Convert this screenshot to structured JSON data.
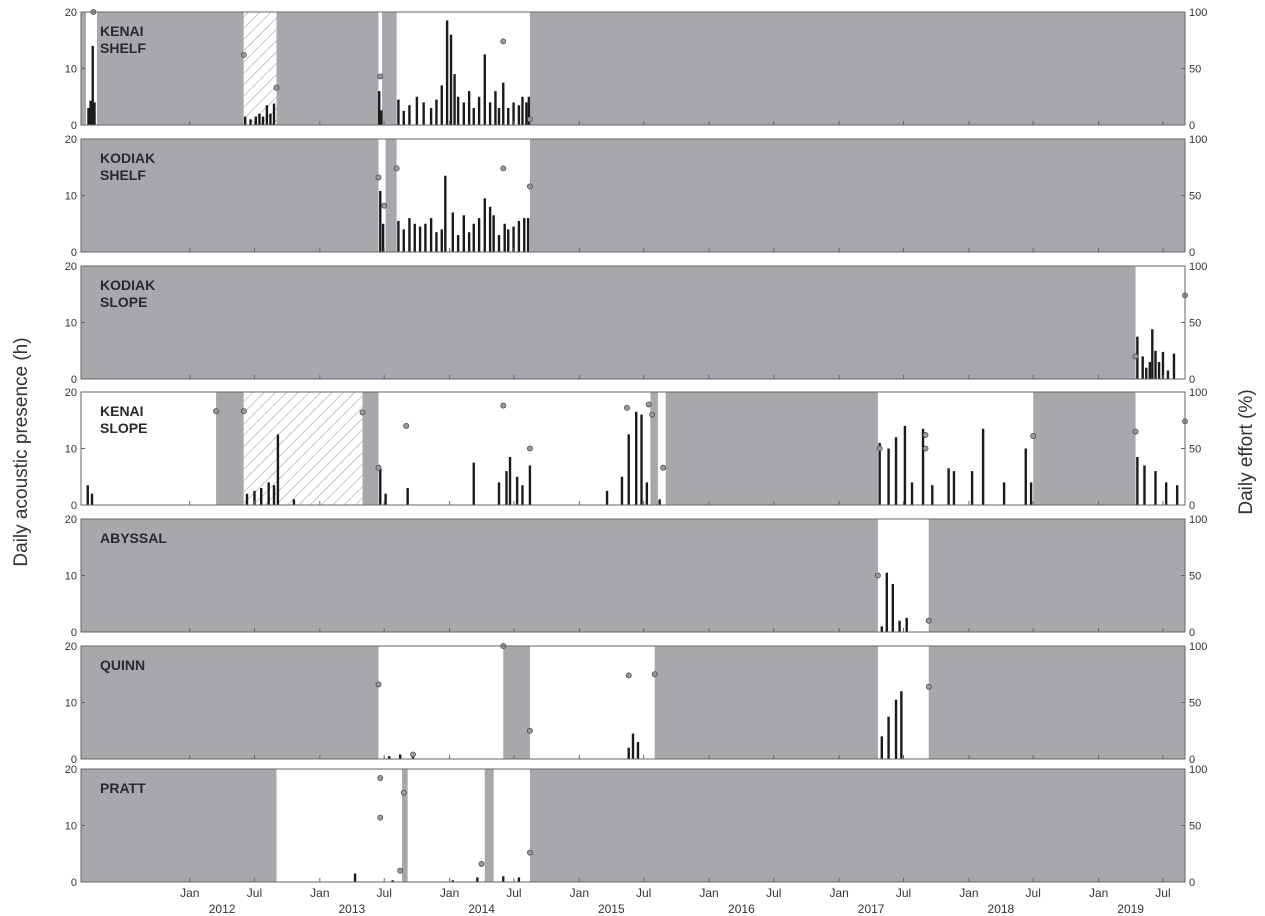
{
  "colors": {
    "no_effort": "#a7a8ab",
    "bar": "#1a1a1a",
    "effort_point_fill": "#9a9a9a",
    "frame": "#666666",
    "hatch": "#777777"
  },
  "chart_data": {
    "type": "bar",
    "ylabel_left": "Daily acoustic presence (h)",
    "ylabel_right": "Daily effort (%)",
    "ylim_left": [
      0,
      20
    ],
    "ylim_right": [
      0,
      100
    ],
    "yticks_left": [
      "0",
      "10",
      "20"
    ],
    "yticks_right": [
      "0",
      "50",
      "100"
    ],
    "xlim": [
      "2011-03-01",
      "2019-09-01"
    ],
    "x_month_ticks": [
      {
        "date": "2012-01-01",
        "label": "Jan"
      },
      {
        "date": "2012-07-01",
        "label": "Jul"
      },
      {
        "date": "2013-01-01",
        "label": "Jan"
      },
      {
        "date": "2013-07-01",
        "label": "Jul"
      },
      {
        "date": "2014-01-01",
        "label": "Jan"
      },
      {
        "date": "2014-07-01",
        "label": "Jul"
      },
      {
        "date": "2015-01-01",
        "label": "Jan"
      },
      {
        "date": "2015-07-01",
        "label": "Jul"
      },
      {
        "date": "2016-01-01",
        "label": "Jan"
      },
      {
        "date": "2016-07-01",
        "label": "Jul"
      },
      {
        "date": "2017-01-01",
        "label": "Jan"
      },
      {
        "date": "2017-07-01",
        "label": "Jul"
      },
      {
        "date": "2018-01-01",
        "label": "Jan"
      },
      {
        "date": "2018-07-01",
        "label": "Jul"
      },
      {
        "date": "2019-01-01",
        "label": "Jan"
      },
      {
        "date": "2019-07-01",
        "label": "Jul"
      }
    ],
    "x_year_labels": [
      {
        "date": "2012-04-01",
        "label": "2012"
      },
      {
        "date": "2013-04-01",
        "label": "2013"
      },
      {
        "date": "2014-04-01",
        "label": "2014"
      },
      {
        "date": "2015-04-01",
        "label": "2015"
      },
      {
        "date": "2016-04-01",
        "label": "2016"
      },
      {
        "date": "2017-04-01",
        "label": "2017"
      },
      {
        "date": "2018-04-01",
        "label": "2018"
      },
      {
        "date": "2019-04-01",
        "label": "2019"
      }
    ],
    "panels": [
      {
        "name": "KENAI\nSHELF",
        "recorded": [
          [
            "2011-03-15",
            "2011-04-15"
          ],
          [
            "2012-06-01",
            "2012-09-01"
          ],
          [
            "2013-06-15",
            "2013-06-25"
          ],
          [
            "2013-08-05",
            "2014-08-15"
          ]
        ],
        "hatched": [
          [
            "2012-06-01",
            "2012-09-01"
          ]
        ],
        "bars": [
          [
            "2011-03-22",
            3
          ],
          [
            "2011-03-28",
            4.3
          ],
          [
            "2011-04-03",
            14
          ],
          [
            "2011-04-08",
            4
          ],
          [
            "2012-06-05",
            1.5
          ],
          [
            "2012-06-20",
            1
          ],
          [
            "2012-07-05",
            1.5
          ],
          [
            "2012-07-15",
            2
          ],
          [
            "2012-07-25",
            1.5
          ],
          [
            "2012-08-05",
            3.5
          ],
          [
            "2012-08-15",
            2
          ],
          [
            "2012-08-25",
            3.8
          ],
          [
            "2013-06-17",
            6
          ],
          [
            "2013-06-23",
            2.6
          ],
          [
            "2013-08-10",
            4.5
          ],
          [
            "2013-08-25",
            2.5
          ],
          [
            "2013-09-10",
            3.5
          ],
          [
            "2013-10-01",
            5
          ],
          [
            "2013-10-20",
            4
          ],
          [
            "2013-11-10",
            3
          ],
          [
            "2013-11-25",
            4.5
          ],
          [
            "2013-12-10",
            7
          ],
          [
            "2013-12-25",
            18.5
          ],
          [
            "2014-01-05",
            16
          ],
          [
            "2014-01-15",
            9
          ],
          [
            "2014-01-25",
            5
          ],
          [
            "2014-02-10",
            4
          ],
          [
            "2014-02-25",
            6
          ],
          [
            "2014-03-10",
            3
          ],
          [
            "2014-03-25",
            5
          ],
          [
            "2014-04-10",
            12.5
          ],
          [
            "2014-04-25",
            4
          ],
          [
            "2014-05-10",
            6
          ],
          [
            "2014-05-20",
            3
          ],
          [
            "2014-06-01",
            7.5
          ],
          [
            "2014-06-15",
            3
          ],
          [
            "2014-06-30",
            4
          ],
          [
            "2014-07-15",
            3.5
          ],
          [
            "2014-07-25",
            5
          ],
          [
            "2014-08-05",
            4
          ],
          [
            "2014-08-12",
            5
          ]
        ],
        "effort": [
          [
            "2011-04-05",
            100
          ],
          [
            "2012-06-01",
            62
          ],
          [
            "2012-09-01",
            33
          ],
          [
            "2013-06-20",
            43
          ],
          [
            "2014-06-01",
            74
          ],
          [
            "2014-08-15",
            5
          ]
        ]
      },
      {
        "name": "KODIAK\nSHELF",
        "recorded": [
          [
            "2013-06-15",
            "2013-07-05"
          ],
          [
            "2013-08-05",
            "2014-08-15"
          ]
        ],
        "hatched": [],
        "bars": [
          [
            "2013-06-20",
            10.8
          ],
          [
            "2013-06-28",
            5
          ],
          [
            "2013-08-10",
            5.5
          ],
          [
            "2013-08-25",
            4
          ],
          [
            "2013-09-10",
            6
          ],
          [
            "2013-09-25",
            5
          ],
          [
            "2013-10-10",
            4.5
          ],
          [
            "2013-10-25",
            5
          ],
          [
            "2013-11-10",
            6
          ],
          [
            "2013-11-25",
            3.5
          ],
          [
            "2013-12-10",
            4
          ],
          [
            "2013-12-20",
            13.5
          ],
          [
            "2014-01-10",
            7
          ],
          [
            "2014-01-25",
            3
          ],
          [
            "2014-02-10",
            6.5
          ],
          [
            "2014-02-25",
            3.5
          ],
          [
            "2014-03-10",
            5
          ],
          [
            "2014-03-25",
            6
          ],
          [
            "2014-04-10",
            9.5
          ],
          [
            "2014-04-25",
            8
          ],
          [
            "2014-05-05",
            6.5
          ],
          [
            "2014-05-20",
            3
          ],
          [
            "2014-06-05",
            5
          ],
          [
            "2014-06-15",
            4
          ],
          [
            "2014-06-30",
            4.5
          ],
          [
            "2014-07-15",
            5.5
          ],
          [
            "2014-07-30",
            6
          ],
          [
            "2014-08-10",
            6
          ]
        ],
        "effort": [
          [
            "2013-06-15",
            66
          ],
          [
            "2013-07-01",
            41
          ],
          [
            "2013-08-05",
            74
          ],
          [
            "2014-06-01",
            74
          ],
          [
            "2014-08-15",
            58
          ]
        ]
      },
      {
        "name": "KODIAK\nSLOPE",
        "recorded": [
          [
            "2019-04-15",
            "2019-09-01"
          ]
        ],
        "hatched": [],
        "bars": [
          [
            "2019-04-20",
            7.5
          ],
          [
            "2019-05-05",
            4
          ],
          [
            "2019-05-15",
            2
          ],
          [
            "2019-05-25",
            3
          ],
          [
            "2019-06-01",
            8.8
          ],
          [
            "2019-06-10",
            5
          ],
          [
            "2019-06-20",
            3
          ],
          [
            "2019-07-01",
            4.8
          ],
          [
            "2019-07-15",
            1.5
          ],
          [
            "2019-08-01",
            4.5
          ]
        ],
        "effort": [
          [
            "2019-04-15",
            20
          ],
          [
            "2019-09-01",
            74
          ]
        ]
      },
      {
        "name": "KENAI\nSLOPE",
        "recorded": [
          [
            "2011-03-01",
            "2012-03-15"
          ],
          [
            "2012-06-01",
            "2013-05-01"
          ],
          [
            "2013-06-15",
            "2015-07-20"
          ],
          [
            "2015-08-10",
            "2015-09-01"
          ],
          [
            "2017-04-20",
            "2018-07-01"
          ],
          [
            "2019-04-15",
            "2019-09-01"
          ]
        ],
        "hatched": [
          [
            "2012-06-01",
            "2013-05-01"
          ]
        ],
        "bars": [
          [
            "2011-03-20",
            3.5
          ],
          [
            "2011-04-01",
            2
          ],
          [
            "2012-06-10",
            2
          ],
          [
            "2012-07-01",
            2.5
          ],
          [
            "2012-07-20",
            3
          ],
          [
            "2012-08-10",
            4
          ],
          [
            "2012-08-25",
            3.5
          ],
          [
            "2012-09-05",
            12.5
          ],
          [
            "2012-10-20",
            1
          ],
          [
            "2013-06-20",
            6.5
          ],
          [
            "2013-07-05",
            2
          ],
          [
            "2013-09-05",
            3
          ],
          [
            "2014-03-10",
            7.5
          ],
          [
            "2014-05-20",
            4
          ],
          [
            "2014-06-10",
            6
          ],
          [
            "2014-06-20",
            8.5
          ],
          [
            "2014-07-10",
            5
          ],
          [
            "2014-07-25",
            3.5
          ],
          [
            "2014-08-15",
            7
          ],
          [
            "2015-03-20",
            2.5
          ],
          [
            "2015-05-01",
            5
          ],
          [
            "2015-05-20",
            12.5
          ],
          [
            "2015-06-10",
            16.5
          ],
          [
            "2015-06-25",
            16
          ],
          [
            "2015-07-10",
            4
          ],
          [
            "2015-08-15",
            1
          ],
          [
            "2017-04-25",
            11
          ],
          [
            "2017-05-20",
            10
          ],
          [
            "2017-06-10",
            12
          ],
          [
            "2017-07-05",
            14
          ],
          [
            "2017-07-25",
            4
          ],
          [
            "2017-08-25",
            13.5
          ],
          [
            "2017-09-20",
            3.5
          ],
          [
            "2017-11-05",
            6.5
          ],
          [
            "2017-11-20",
            6
          ],
          [
            "2018-01-10",
            6
          ],
          [
            "2018-02-10",
            13.5
          ],
          [
            "2018-04-10",
            4
          ],
          [
            "2018-06-10",
            10
          ],
          [
            "2018-06-25",
            4
          ],
          [
            "2019-04-20",
            8.5
          ],
          [
            "2019-05-10",
            7
          ],
          [
            "2019-06-10",
            6
          ],
          [
            "2019-07-10",
            4
          ],
          [
            "2019-08-10",
            3.5
          ]
        ],
        "effort": [
          [
            "2012-03-15",
            83
          ],
          [
            "2012-06-01",
            83
          ],
          [
            "2013-05-01",
            82
          ],
          [
            "2013-06-15",
            33
          ],
          [
            "2013-09-01",
            70
          ],
          [
            "2014-06-01",
            88
          ],
          [
            "2014-08-15",
            50
          ],
          [
            "2015-05-15",
            86
          ],
          [
            "2015-07-15",
            89
          ],
          [
            "2015-07-25",
            80
          ],
          [
            "2015-08-25",
            33
          ],
          [
            "2017-04-25",
            50
          ],
          [
            "2017-09-01",
            62
          ],
          [
            "2017-09-01",
            50
          ],
          [
            "2018-07-01",
            61
          ],
          [
            "2019-04-15",
            65
          ],
          [
            "2019-09-01",
            74
          ]
        ]
      },
      {
        "name": "ABYSSAL",
        "recorded": [
          [
            "2017-04-20",
            "2017-09-10"
          ]
        ],
        "hatched": [],
        "bars": [
          [
            "2017-05-01",
            1
          ],
          [
            "2017-05-15",
            10.5
          ],
          [
            "2017-06-01",
            8.5
          ],
          [
            "2017-06-20",
            2
          ],
          [
            "2017-07-10",
            2.5
          ]
        ],
        "effort": [
          [
            "2017-04-20",
            50
          ],
          [
            "2017-09-10",
            10
          ]
        ]
      },
      {
        "name": "QUINN",
        "recorded": [
          [
            "2013-06-15",
            "2014-06-01"
          ],
          [
            "2014-08-15",
            "2015-08-01"
          ],
          [
            "2017-04-20",
            "2017-09-10"
          ]
        ],
        "hatched": [],
        "bars": [
          [
            "2013-07-15",
            0.5
          ],
          [
            "2013-08-15",
            0.8
          ],
          [
            "2013-09-20",
            0.6
          ],
          [
            "2015-05-20",
            2
          ],
          [
            "2015-06-01",
            4.5
          ],
          [
            "2015-06-15",
            3
          ],
          [
            "2017-05-01",
            4
          ],
          [
            "2017-05-20",
            7.5
          ],
          [
            "2017-06-10",
            10.5
          ],
          [
            "2017-06-25",
            12
          ]
        ],
        "effort": [
          [
            "2013-06-15",
            66
          ],
          [
            "2013-09-20",
            4
          ],
          [
            "2014-06-01",
            100
          ],
          [
            "2014-08-15",
            25
          ],
          [
            "2015-05-20",
            74
          ],
          [
            "2015-08-01",
            75
          ],
          [
            "2017-09-10",
            64
          ]
        ]
      },
      {
        "name": "PRATT",
        "recorded": [
          [
            "2012-09-01",
            "2013-08-20"
          ],
          [
            "2013-09-05",
            "2014-04-10"
          ],
          [
            "2014-05-05",
            "2014-08-15"
          ]
        ],
        "hatched": [],
        "bars": [
          [
            "2013-04-10",
            1.5
          ],
          [
            "2013-07-25",
            0.3
          ],
          [
            "2014-01-10",
            0.3
          ],
          [
            "2014-03-20",
            0.8
          ],
          [
            "2014-06-01",
            1
          ],
          [
            "2014-07-15",
            0.8
          ]
        ],
        "effort": [
          [
            "2013-06-20",
            92
          ],
          [
            "2013-06-20",
            57
          ],
          [
            "2013-08-15",
            10
          ],
          [
            "2013-08-25",
            79
          ],
          [
            "2014-04-01",
            16
          ],
          [
            "2014-08-15",
            26
          ]
        ]
      }
    ]
  }
}
